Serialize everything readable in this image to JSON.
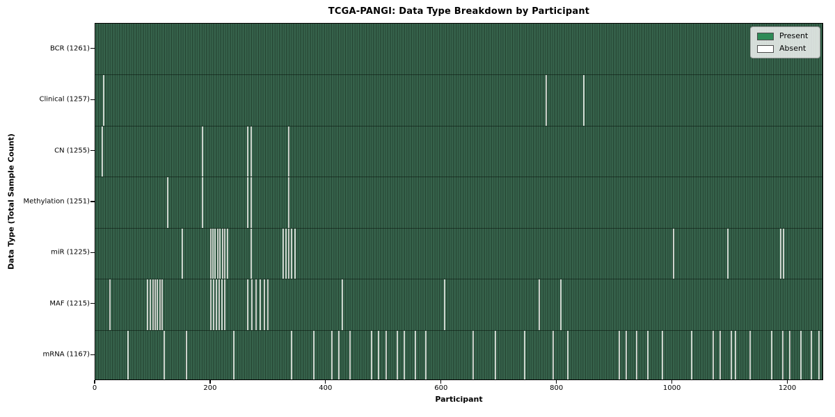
{
  "title": "TCGA-PANGI: Data Type Breakdown by Participant",
  "xlabel": "Participant",
  "ylabel": "Data Type (Total Sample Count)",
  "legend": {
    "present_label": "Present",
    "absent_label": "Absent"
  },
  "colors": {
    "present": "#2e8b57",
    "absent": "#ffffff",
    "heat_stripe_light": "#3d6f55",
    "heat_stripe_dark": "#1f3a2a",
    "absent_stripe": "#ccd3cc",
    "legend_border": "#9a9a9a",
    "axis": "#000000"
  },
  "chart_data": {
    "type": "heatmap",
    "title": "TCGA-PANGI: Data Type Breakdown by Participant",
    "xlabel": "Participant",
    "ylabel": "Data Type (Total Sample Count)",
    "legend_entries": [
      "Present",
      "Absent"
    ],
    "legend_position": "upper right",
    "x_domain": [
      0,
      1262
    ],
    "x_ticks": [
      0,
      200,
      400,
      600,
      800,
      1000,
      1200
    ],
    "cell_values": "binary presence (1=Present green, 0=Absent white)",
    "rows": [
      {
        "data_type": "BCR",
        "label": "BCR (1261)",
        "total_samples": 1261,
        "absent_participants": []
      },
      {
        "data_type": "Clinical",
        "label": "Clinical (1257)",
        "total_samples": 1257,
        "absent_participants": [
          14,
          782,
          848
        ]
      },
      {
        "data_type": "CN",
        "label": "CN (1255)",
        "total_samples": 1255,
        "absent_participants": [
          12,
          186,
          264,
          270,
          336
        ]
      },
      {
        "data_type": "Methylation",
        "label": "Methylation (1251)",
        "total_samples": 1251,
        "absent_participants": [
          125,
          186,
          264,
          270,
          336
        ]
      },
      {
        "data_type": "miR",
        "label": "miR (1225)",
        "total_samples": 1225,
        "absent_participants": [
          151,
          200,
          204,
          208,
          212,
          216,
          221,
          225,
          229,
          271,
          326,
          331,
          336,
          341,
          346,
          1003,
          1098,
          1190,
          1194
        ]
      },
      {
        "data_type": "MAF",
        "label": "MAF (1215)",
        "total_samples": 1215,
        "absent_participants": [
          25,
          90,
          95,
          100,
          104,
          108,
          112,
          116,
          200,
          205,
          210,
          215,
          220,
          225,
          265,
          272,
          279,
          286,
          293,
          300,
          429,
          606,
          770,
          808
        ]
      },
      {
        "data_type": "mRNA",
        "label": "mRNA (1167)",
        "total_samples": 1167,
        "absent_participants": [
          57,
          120,
          158,
          240,
          341,
          379,
          410,
          423,
          442,
          480,
          492,
          505,
          524,
          536,
          555,
          574,
          656,
          694,
          745,
          795,
          820,
          909,
          921,
          940,
          959,
          984,
          1035,
          1073,
          1085,
          1104,
          1111,
          1136,
          1174,
          1193,
          1205,
          1224,
          1243,
          1256
        ]
      }
    ]
  }
}
